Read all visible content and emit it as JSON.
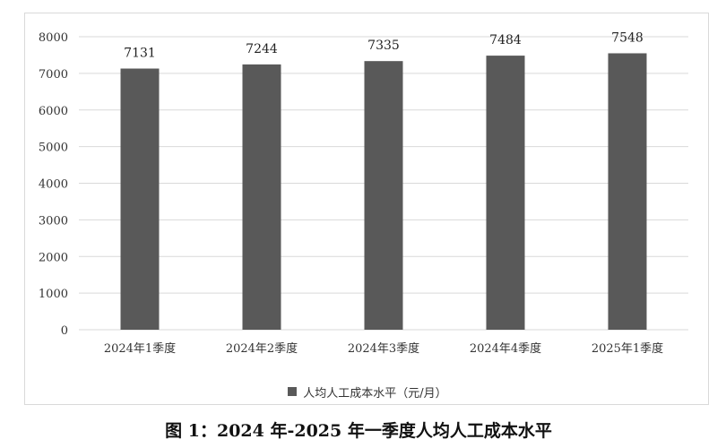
{
  "chart_data": {
    "type": "bar",
    "categories": [
      "2024年1季度",
      "2024年2季度",
      "2024年3季度",
      "2024年4季度",
      "2025年1季度"
    ],
    "series": [
      {
        "name": "人均人工成本水平（元/月）",
        "values": [
          7131,
          7244,
          7335,
          7484,
          7548
        ]
      }
    ],
    "ylim": [
      0,
      8000
    ],
    "yticks": [
      0,
      1000,
      2000,
      3000,
      4000,
      5000,
      6000,
      7000,
      8000
    ],
    "grid": true,
    "legend_position": "bottom",
    "data_labels": true,
    "bar_color": "#595959"
  },
  "caption": "图 1：2024 年-2025 年一季度人均人工成本水平"
}
